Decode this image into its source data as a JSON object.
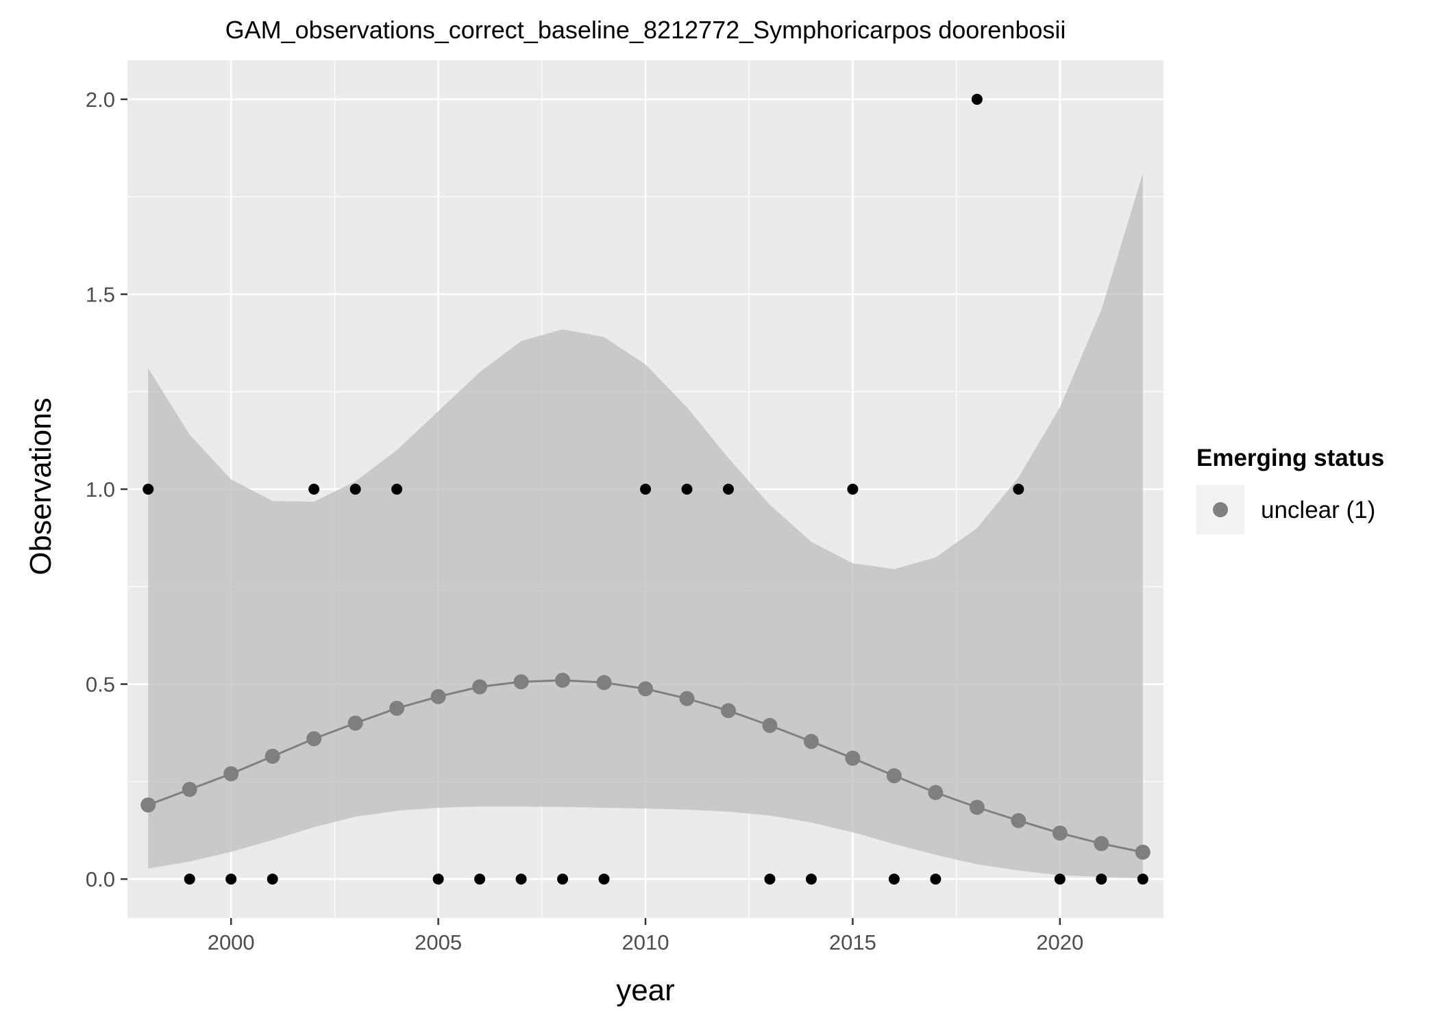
{
  "chart_data": {
    "type": "line",
    "title": "GAM_observations_correct_baseline_8212772_Symphoricarpos doorenbosii",
    "xlabel": "year",
    "ylabel": "Observations",
    "xlim": [
      1997.5,
      2022.5
    ],
    "ylim": [
      -0.1,
      2.1
    ],
    "x_ticks": [
      2000,
      2005,
      2010,
      2015,
      2020
    ],
    "y_ticks": [
      0.0,
      0.5,
      1.0,
      1.5,
      2.0
    ],
    "y_tick_labels": [
      "0.0",
      "0.5",
      "1.0",
      "1.5",
      "2.0"
    ],
    "grid": true,
    "legend": {
      "position": "right",
      "title": "Emerging status",
      "entries": [
        "unclear (1)"
      ]
    },
    "colors": {
      "panel": "#ebebeb",
      "grid_major": "#ffffff",
      "ribbon": "#bdbdbd",
      "fit": "#7f7f7f",
      "observed": "#000000"
    },
    "years": [
      1998,
      1999,
      2000,
      2001,
      2002,
      2003,
      2004,
      2005,
      2006,
      2007,
      2008,
      2009,
      2010,
      2011,
      2012,
      2013,
      2014,
      2015,
      2016,
      2017,
      2018,
      2019,
      2020,
      2021,
      2022
    ],
    "observed": [
      1,
      0,
      0,
      0,
      1,
      1,
      1,
      0,
      0,
      0,
      0,
      0,
      1,
      1,
      1,
      0,
      0,
      1,
      0,
      0,
      2,
      1,
      0,
      0,
      0
    ],
    "fit": [
      0.19,
      0.23,
      0.27,
      0.315,
      0.36,
      0.4,
      0.438,
      0.468,
      0.493,
      0.506,
      0.51,
      0.504,
      0.488,
      0.463,
      0.432,
      0.394,
      0.353,
      0.31,
      0.265,
      0.222,
      0.184,
      0.15,
      0.118,
      0.091,
      0.069
    ],
    "ci_upper": [
      1.31,
      1.14,
      1.025,
      0.97,
      0.968,
      1.02,
      1.1,
      1.2,
      1.3,
      1.38,
      1.41,
      1.39,
      1.32,
      1.21,
      1.08,
      0.96,
      0.865,
      0.81,
      0.795,
      0.825,
      0.9,
      1.03,
      1.21,
      1.46,
      1.81
    ],
    "ci_lower": [
      0.027,
      0.045,
      0.07,
      0.1,
      0.133,
      0.16,
      0.175,
      0.183,
      0.186,
      0.186,
      0.185,
      0.183,
      0.181,
      0.178,
      0.173,
      0.163,
      0.145,
      0.12,
      0.09,
      0.062,
      0.038,
      0.022,
      0.01,
      0.005,
      0.002
    ]
  }
}
